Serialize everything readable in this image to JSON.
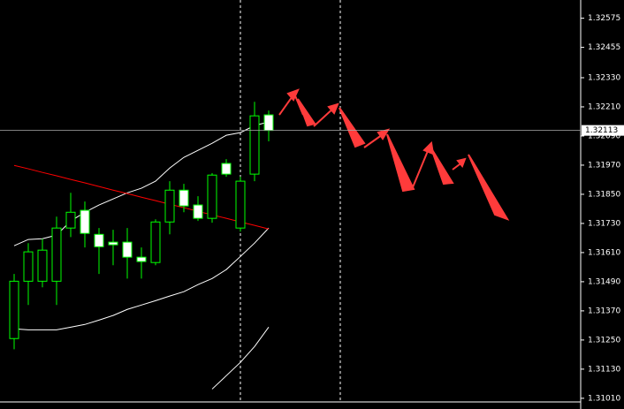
{
  "chart_data": {
    "type": "candlestick",
    "open": [
      1.31256,
      1.31492,
      1.31492,
      1.31492,
      1.31711,
      1.31784,
      1.31685,
      1.31653,
      1.31653,
      1.31591,
      1.31569,
      1.31736,
      1.31867,
      1.31806,
      1.31751,
      1.31977,
      1.31711,
      1.31933,
      1.32177
    ],
    "high": [
      1.31522,
      1.31649,
      1.31667,
      1.31758,
      1.31856,
      1.3182,
      1.31711,
      1.31704,
      1.31711,
      1.31631,
      1.31747,
      1.31904,
      1.31893,
      1.31842,
      1.31937,
      1.31995,
      1.31922,
      1.32231,
      1.32195
    ],
    "low": [
      1.31212,
      1.31394,
      1.31467,
      1.31394,
      1.31674,
      1.31631,
      1.31522,
      1.31558,
      1.31503,
      1.31503,
      1.31558,
      1.31685,
      1.31776,
      1.3174,
      1.31733,
      1.31922,
      1.31696,
      1.31904,
      1.32068
    ],
    "close": [
      1.31492,
      1.31613,
      1.3162,
      1.31711,
      1.31776,
      1.31689,
      1.31634,
      1.31642,
      1.31591,
      1.31573,
      1.31736,
      1.31867,
      1.31802,
      1.31751,
      1.31929,
      1.31933,
      1.31904,
      1.32173,
      1.32113
    ],
    "bull_color": "#000000",
    "bear_color": "#ffffff",
    "wick_color": "#00ff00",
    "lines": [
      {
        "color": "#ffffff",
        "values": [
          1.31638,
          1.31664,
          1.31667,
          1.31682,
          1.3174,
          1.31776,
          1.31806,
          1.31831,
          1.31856,
          1.31875,
          1.31904,
          1.31958,
          1.32002,
          1.32031,
          1.3206,
          1.32093,
          1.32104,
          1.32133,
          1.32148
        ]
      },
      {
        "color": "#ffffff",
        "values": [
          1.31296,
          1.31292,
          1.31292,
          1.31292,
          1.31303,
          1.31314,
          1.31332,
          1.31351,
          1.31376,
          1.31394,
          1.31412,
          1.31431,
          1.31449,
          1.31478,
          1.31503,
          1.3154,
          1.31594,
          1.31649,
          1.31711
        ]
      },
      {
        "color": "#ff0000",
        "values": [
          1.31969,
          1.31955,
          1.3194,
          1.31926,
          1.31911,
          1.31897,
          1.31882,
          1.31867,
          1.31853,
          1.31838,
          1.31824,
          1.31809,
          1.31795,
          1.3178,
          1.31765,
          1.31751,
          1.31736,
          1.31722,
          1.31707
        ]
      },
      {
        "color": "#ffffff",
        "values": [
          null,
          null,
          null,
          null,
          null,
          null,
          null,
          null,
          null,
          null,
          null,
          null,
          null,
          null,
          1.31048,
          1.31103,
          1.31158,
          1.31223,
          1.31303
        ]
      }
    ],
    "last_price": 1.32113,
    "ylim": [
      1.30995,
      1.3265
    ],
    "yticks": [
      1.32575,
      1.32455,
      {
        "value": 1.3233,
        "label": "1.32330"
      },
      {
        "value": 1.3221,
        "label": "1.32210"
      },
      {
        "value": 1.3209,
        "label": "1.32090"
      },
      {
        "value": 1.3197,
        "label": "1.31970"
      },
      {
        "value": 1.3185,
        "label": "1.31850"
      },
      {
        "value": 1.3173,
        "label": "1.31730"
      },
      {
        "value": 1.3161,
        "label": "1.31610"
      },
      {
        "value": 1.3149,
        "label": "1.31490"
      },
      {
        "value": 1.3137,
        "label": "1.31370"
      },
      {
        "value": 1.3125,
        "label": "1.31250"
      },
      {
        "value": 1.3113,
        "label": "1.31130"
      },
      {
        "value": 1.3101,
        "label": "1.31010"
      }
    ]
  }
}
